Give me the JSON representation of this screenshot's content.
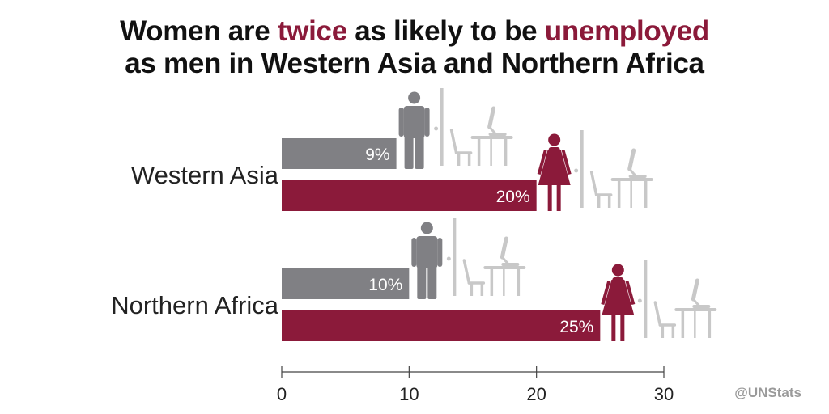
{
  "title": {
    "line1": [
      {
        "text": "Women are ",
        "highlight": false
      },
      {
        "text": "twice",
        "highlight": true
      },
      {
        "text": " as likely to be ",
        "highlight": false
      },
      {
        "text": "unemployed",
        "highlight": true
      }
    ],
    "line2": "as men in Western Asia and Northern Africa"
  },
  "credit": "@UNStats",
  "colors": {
    "men": "#808084",
    "women": "#8b1a3a",
    "icon_light": "#c8c8c8",
    "highlight": "#8b1a3a"
  },
  "icons": {
    "men": "man-icon",
    "women": "woman-icon",
    "office": "empty-desk-chair-computer-icon"
  },
  "chart_data": {
    "type": "bar",
    "orientation": "horizontal",
    "categories": [
      "Western Asia",
      "Northern Africa"
    ],
    "series": [
      {
        "values": [
          9,
          10
        ],
        "labels": [
          "9%",
          "10%"
        ]
      },
      {
        "values": [
          20,
          25
        ],
        "labels": [
          "20%",
          "25%"
        ]
      }
    ],
    "xlim": [
      0,
      30
    ],
    "xticks": [
      0,
      10,
      20,
      30
    ],
    "grid": false
  }
}
